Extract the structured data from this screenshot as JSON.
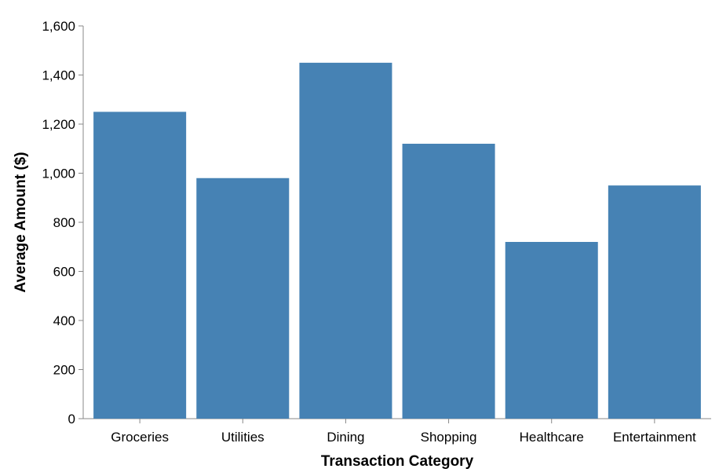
{
  "chart_data": {
    "type": "bar",
    "categories": [
      "Groceries",
      "Utilities",
      "Dining",
      "Shopping",
      "Healthcare",
      "Entertainment"
    ],
    "values": [
      1250,
      980,
      1450,
      1120,
      720,
      950
    ],
    "xlabel": "Transaction Category",
    "ylabel": "Average Amount ($)",
    "ylim": [
      0,
      1600
    ],
    "yticks": [
      "0",
      "200",
      "400",
      "600",
      "800",
      "1,000",
      "1,200",
      "1,400",
      "1,600"
    ],
    "grid": false,
    "bar_color": "#4682b4"
  }
}
